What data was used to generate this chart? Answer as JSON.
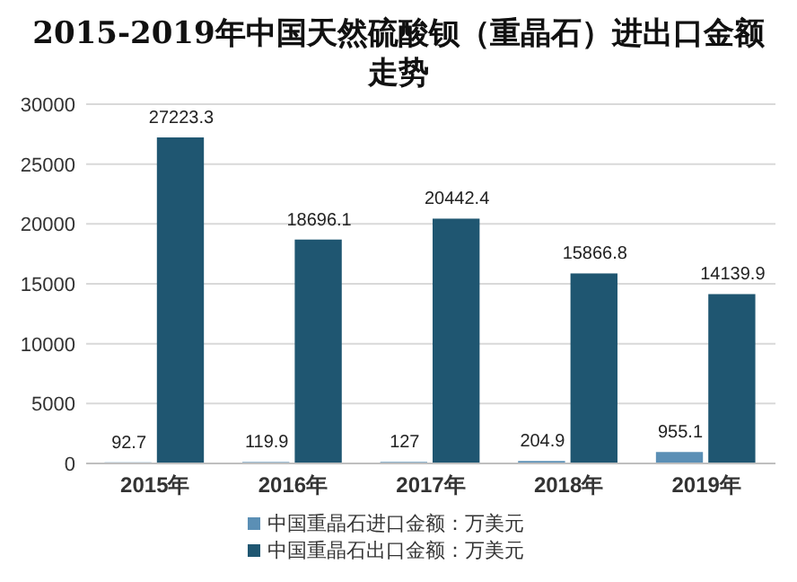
{
  "chart_data": {
    "type": "bar",
    "title": "2015-2019年中国天然硫酸钡（重晶石）进出口金额走势",
    "categories": [
      "2015年",
      "2016年",
      "2017年",
      "2018年",
      "2019年"
    ],
    "series": [
      {
        "name": "中国重晶石进口金额：万美元",
        "color": "#5b8fb5",
        "values": [
          92.7,
          119.9,
          127,
          204.9,
          955.1
        ]
      },
      {
        "name": "中国重晶石出口金额：万美元",
        "color": "#1f5671",
        "values": [
          27223.3,
          18696.1,
          20442.4,
          15866.8,
          14139.9
        ]
      }
    ],
    "ylim": [
      0,
      30000
    ],
    "yticks": [
      0,
      5000,
      10000,
      15000,
      20000,
      25000,
      30000
    ],
    "grid": "y",
    "legend": "bottom",
    "data_labels": true
  }
}
